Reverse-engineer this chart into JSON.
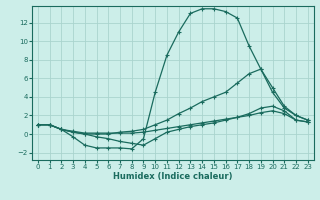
{
  "xlabel": "Humidex (Indice chaleur)",
  "background_color": "#cceee9",
  "grid_color": "#aad4ce",
  "line_color": "#1a6b5e",
  "xlim": [
    -0.5,
    23.5
  ],
  "ylim": [
    -2.8,
    13.8
  ],
  "xticks": [
    0,
    1,
    2,
    3,
    4,
    5,
    6,
    7,
    8,
    9,
    10,
    11,
    12,
    13,
    14,
    15,
    16,
    17,
    18,
    19,
    20,
    21,
    22,
    23
  ],
  "yticks": [
    -2,
    0,
    2,
    4,
    6,
    8,
    10,
    12
  ],
  "lines": [
    {
      "x": [
        0,
        1,
        2,
        3,
        4,
        5,
        6,
        7,
        8,
        9,
        10,
        11,
        12,
        13,
        14,
        15,
        16,
        17,
        18,
        19,
        20,
        21,
        22,
        23
      ],
      "y": [
        1.0,
        1.0,
        0.5,
        -0.3,
        -1.2,
        -1.5,
        -1.5,
        -1.5,
        -1.6,
        -0.5,
        4.5,
        8.5,
        11.0,
        13.0,
        13.5,
        13.5,
        13.2,
        12.5,
        9.5,
        7.0,
        5.0,
        3.0,
        2.0,
        1.5
      ]
    },
    {
      "x": [
        0,
        1,
        2,
        3,
        4,
        5,
        6,
        7,
        8,
        9,
        10,
        11,
        12,
        13,
        14,
        15,
        16,
        17,
        18,
        19,
        20,
        21,
        22,
        23
      ],
      "y": [
        1.0,
        1.0,
        0.5,
        0.2,
        0.0,
        0.0,
        0.0,
        0.2,
        0.3,
        0.5,
        1.0,
        1.5,
        2.2,
        2.8,
        3.5,
        4.0,
        4.5,
        5.5,
        6.5,
        7.0,
        4.5,
        2.8,
        2.0,
        1.5
      ]
    },
    {
      "x": [
        0,
        1,
        2,
        3,
        4,
        5,
        6,
        7,
        8,
        9,
        10,
        11,
        12,
        13,
        14,
        15,
        16,
        17,
        18,
        19,
        20,
        21,
        22,
        23
      ],
      "y": [
        1.0,
        1.0,
        0.5,
        0.2,
        0.0,
        -0.3,
        -0.5,
        -0.8,
        -1.0,
        -1.2,
        -0.5,
        0.2,
        0.5,
        0.8,
        1.0,
        1.2,
        1.5,
        1.8,
        2.2,
        2.8,
        3.0,
        2.5,
        1.5,
        1.3
      ]
    },
    {
      "x": [
        0,
        1,
        2,
        3,
        4,
        5,
        6,
        7,
        8,
        9,
        10,
        11,
        12,
        13,
        14,
        15,
        16,
        17,
        18,
        19,
        20,
        21,
        22,
        23
      ],
      "y": [
        1.0,
        1.0,
        0.5,
        0.3,
        0.1,
        0.1,
        0.1,
        0.1,
        0.1,
        0.2,
        0.4,
        0.6,
        0.8,
        1.0,
        1.2,
        1.4,
        1.6,
        1.8,
        2.0,
        2.3,
        2.5,
        2.2,
        1.5,
        1.3
      ]
    }
  ]
}
